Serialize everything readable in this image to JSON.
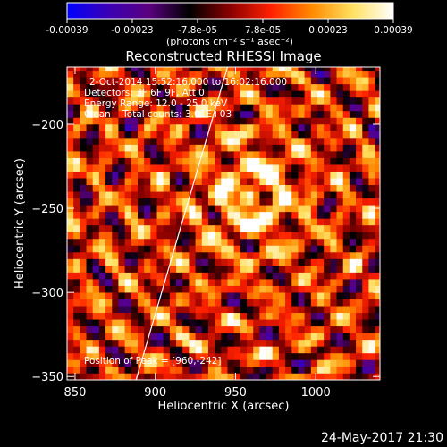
{
  "chart_data": {
    "type": "heatmap",
    "title": "Reconstructed RHESSI Image",
    "xlabel": "Heliocentric X (arcsec)",
    "ylabel": "Heliocentric Y (arcsec)",
    "xlim": [
      845,
      1040
    ],
    "ylim": [
      -352,
      -166
    ],
    "x_ticks": [
      850,
      900,
      950,
      1000
    ],
    "y_ticks": [
      -350,
      -300,
      -250,
      -200
    ],
    "colorbar": {
      "min": -0.00039,
      "max": 0.00039,
      "ticks": [
        "-0.00039",
        "-0.00023",
        "-7.8e-05",
        "7.8e-05",
        "0.00023",
        "0.00039"
      ],
      "unit_label": "(photons cm⁻² s⁻¹ asec⁻²)",
      "colors": [
        "#0000ff",
        "#3a00b4",
        "#5a0080",
        "#000000",
        "#8a0000",
        "#ff2000",
        "#ff8a00",
        "#ffe060",
        "#ffffff"
      ]
    },
    "annotations": [
      "2-Oct-2014 15:52:16.000 to 16:02:16.000",
      "Detectors: 3F 6F 9F, Att 0",
      "Energy Range: 12.0 - 25.0 keV",
      "Clean    Total counts: 3.01E+03"
    ],
    "peak_label": "Position of Peak = [960,-242]",
    "peak": [
      960,
      -242
    ],
    "limb_line": [
      [
        888,
        -352
      ],
      [
        945,
        -166
      ]
    ],
    "grid_step_arcsec": 4
  },
  "footer_timestamp": "24-May-2017 21:30"
}
